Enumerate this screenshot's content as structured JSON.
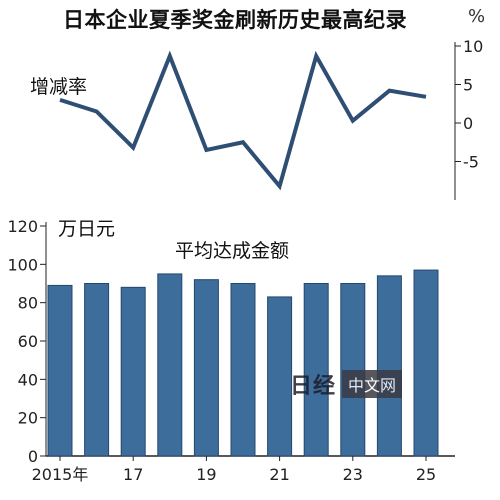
{
  "title": "日本企业夏季奖金刷新历史最高纪录",
  "watermark": {
    "logo": "日经",
    "text": "中文网"
  },
  "chart_data": [
    {
      "type": "line",
      "label": "增减率",
      "unit": "%",
      "x": [
        2015,
        2016,
        2017,
        2018,
        2019,
        2020,
        2021,
        2022,
        2023,
        2024,
        2025
      ],
      "values": [
        3.0,
        1.5,
        -3.2,
        8.7,
        -3.5,
        -2.5,
        -8.2,
        8.7,
        0.3,
        4.2,
        3.4
      ],
      "ylim": [
        -10,
        10
      ],
      "yticks": [
        "10",
        "5",
        "0",
        "-5"
      ],
      "color": "#2e4e73"
    },
    {
      "type": "bar",
      "label": "平均达成金额",
      "unit": "万日元",
      "x": [
        2015,
        2016,
        2017,
        2018,
        2019,
        2020,
        2021,
        2022,
        2023,
        2024,
        2025
      ],
      "values": [
        89,
        90,
        88,
        95,
        92,
        90,
        83,
        90,
        90,
        94,
        97
      ],
      "xticks": [
        "2015年",
        "17",
        "19",
        "21",
        "23",
        "25"
      ],
      "ylim": [
        0,
        120
      ],
      "yticks": [
        "120",
        "100",
        "80",
        "60",
        "40",
        "20",
        "0"
      ],
      "color": "#3d6d9a"
    }
  ]
}
